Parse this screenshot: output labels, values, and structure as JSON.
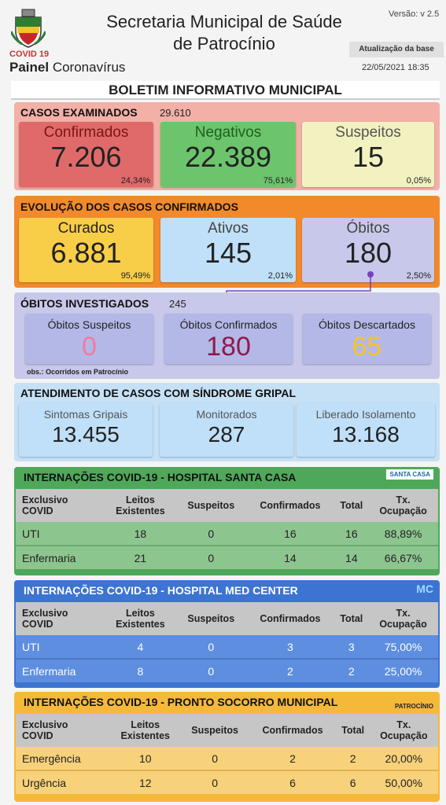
{
  "header": {
    "covid_label": "COVID 19",
    "painel_bold": "Painel",
    "painel_rest": " Coronavírus",
    "title_line1": "Secretaria Municipal de Saúde",
    "title_line2": "de Patrocínio",
    "versao": "Versão: v 2.5",
    "atualizacao_label": "Atualização da base",
    "atualizacao_date": "22/05/2021 18:35"
  },
  "boletim": "BOLETIM INFORMATIVO MUNICIPAL",
  "casos": {
    "title": "CASOS EXAMINADOS",
    "total": "29.610",
    "cards": [
      {
        "label": "Confirmados",
        "value": "7.206",
        "pct": "24,34%"
      },
      {
        "label": "Negativos",
        "value": "22.389",
        "pct": "75,61%"
      },
      {
        "label": "Suspeitos",
        "value": "15",
        "pct": "0,05%"
      }
    ]
  },
  "evolucao": {
    "title": "EVOLUÇÃO DOS CASOS CONFIRMADOS",
    "cards": [
      {
        "label": "Curados",
        "value": "6.881",
        "pct": "95,49%"
      },
      {
        "label": "Ativos",
        "value": "145",
        "pct": "2,01%"
      },
      {
        "label": "Óbitos",
        "value": "180",
        "pct": "2,50%"
      }
    ]
  },
  "obitos": {
    "title": "ÓBITOS INVESTIGADOS",
    "total": "245",
    "note": "obs.: Ocorridos em Patrocínio",
    "cards": [
      {
        "label": "Óbitos Suspeitos",
        "value": "0",
        "color": "#f07ca0"
      },
      {
        "label": "Óbitos Confirmados",
        "value": "180",
        "color": "#8e1a4c"
      },
      {
        "label": "Óbitos Descartados",
        "value": "65",
        "color": "#f5c32c"
      }
    ]
  },
  "sindrome": {
    "title": "ATENDIMENTO DE CASOS COM SÍNDROME GRIPAL",
    "cards": [
      {
        "label": "Sintomas Gripais",
        "value": "13.455"
      },
      {
        "label": "Monitorados",
        "value": "287"
      },
      {
        "label": "Liberado Isolamento",
        "value": "13.168"
      }
    ]
  },
  "headers": {
    "col1a": "Exclusivo",
    "col1b": "COVID",
    "col2a": "Leitos",
    "col2b": "Existentes",
    "col3": "Suspeitos",
    "col4": "Confirmados",
    "col5": "Total",
    "col6a": "Tx.",
    "col6b": "Ocupação"
  },
  "santa_casa": {
    "title": "INTERNAÇÕES COVID-19 - HOSPITAL SANTA CASA",
    "brand": "SANTA CASA",
    "rows": [
      {
        "name": "UTI",
        "leitos": "18",
        "suspeitos": "0",
        "confirmados": "16",
        "total": "16",
        "tx": "88,89%"
      },
      {
        "name": "Enfermaria",
        "leitos": "21",
        "suspeitos": "0",
        "confirmados": "14",
        "total": "14",
        "tx": "66,67%"
      }
    ]
  },
  "med_center": {
    "title": "INTERNAÇÕES COVID-19 - HOSPITAL MED CENTER",
    "brand": "MC",
    "rows": [
      {
        "name": "UTI",
        "leitos": "4",
        "suspeitos": "0",
        "confirmados": "3",
        "total": "3",
        "tx": "75,00%"
      },
      {
        "name": "Enfermaria",
        "leitos": "8",
        "suspeitos": "0",
        "confirmados": "2",
        "total": "2",
        "tx": "25,00%"
      }
    ]
  },
  "pronto_socorro": {
    "title": "INTERNAÇÕES COVID-19 - PRONTO SOCORRO MUNICIPAL",
    "brand": "PATROCÍNIO",
    "rows": [
      {
        "name": "Emergência",
        "leitos": "10",
        "suspeitos": "0",
        "confirmados": "2",
        "total": "2",
        "tx": "20,00%"
      },
      {
        "name": "Urgência",
        "leitos": "12",
        "suspeitos": "0",
        "confirmados": "6",
        "total": "6",
        "tx": "50,00%"
      }
    ]
  }
}
